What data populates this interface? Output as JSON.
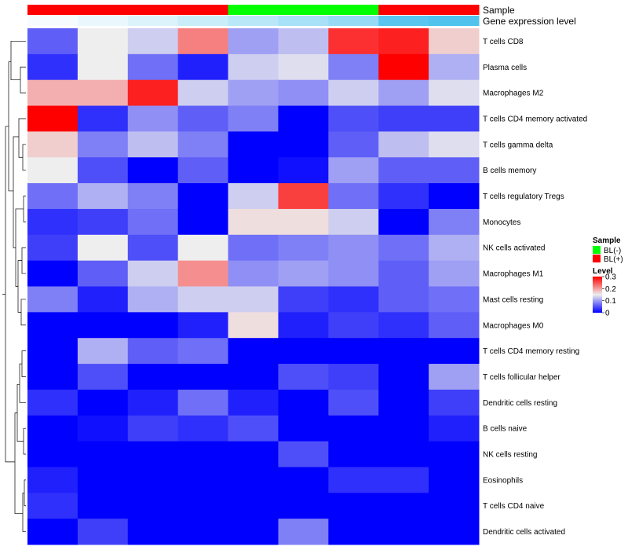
{
  "chart_data": {
    "type": "heatmap",
    "title": "",
    "annotation_labels": [
      "Sample",
      "Gene expression level"
    ],
    "columns": [
      {
        "sample": "BL(+)",
        "expression_level": 0.05
      },
      {
        "sample": "BL(+)",
        "expression_level": 0.12
      },
      {
        "sample": "BL(+)",
        "expression_level": 0.2
      },
      {
        "sample": "BL(+)",
        "expression_level": 0.3
      },
      {
        "sample": "BL(-)",
        "expression_level": 0.4
      },
      {
        "sample": "BL(-)",
        "expression_level": 0.5
      },
      {
        "sample": "BL(-)",
        "expression_level": 0.6
      },
      {
        "sample": "BL(+)",
        "expression_level": 0.95
      },
      {
        "sample": "BL(+)",
        "expression_level": 1.0
      }
    ],
    "rows": [
      "T cells CD8",
      "Plasma cells",
      "Macrophages M2",
      "T cells CD4 memory activated",
      "T cells gamma delta",
      "B cells memory",
      "T cells regulatory  Tregs",
      "Monocytes",
      "NK cells activated",
      "Macrophages M1",
      "Mast cells resting",
      "Macrophages M0",
      "T cells CD4 memory resting",
      "T cells follicular helper",
      "Dendritic cells resting",
      "B cells naive",
      "NK cells resting",
      "Eosinophils",
      "T cells CD4 naive",
      "Dendritic cells activated"
    ],
    "values": [
      [
        0.06,
        0.15,
        0.13,
        0.22,
        0.1,
        0.12,
        0.27,
        0.28,
        0.17
      ],
      [
        0.03,
        0.15,
        0.07,
        0.02,
        0.13,
        0.14,
        0.08,
        0.3,
        0.11
      ],
      [
        0.19,
        0.19,
        0.28,
        0.13,
        0.1,
        0.09,
        0.13,
        0.1,
        0.14
      ],
      [
        0.3,
        0.03,
        0.09,
        0.06,
        0.08,
        0.0,
        0.05,
        0.04,
        0.04
      ],
      [
        0.17,
        0.08,
        0.12,
        0.08,
        0.0,
        0.0,
        0.06,
        0.12,
        0.14
      ],
      [
        0.15,
        0.05,
        0.0,
        0.06,
        0.0,
        0.01,
        0.1,
        0.06,
        0.06
      ],
      [
        0.07,
        0.11,
        0.08,
        0.0,
        0.13,
        0.26,
        0.07,
        0.03,
        0.0
      ],
      [
        0.03,
        0.04,
        0.07,
        0.0,
        0.16,
        0.16,
        0.13,
        0.0,
        0.08
      ],
      [
        0.04,
        0.15,
        0.05,
        0.15,
        0.07,
        0.08,
        0.09,
        0.07,
        0.11
      ],
      [
        0.0,
        0.06,
        0.13,
        0.21,
        0.09,
        0.1,
        0.09,
        0.06,
        0.1
      ],
      [
        0.08,
        0.02,
        0.11,
        0.13,
        0.13,
        0.04,
        0.03,
        0.06,
        0.07
      ],
      [
        0.0,
        0.0,
        0.0,
        0.02,
        0.16,
        0.02,
        0.04,
        0.03,
        0.06
      ],
      [
        0.0,
        0.11,
        0.06,
        0.07,
        0.0,
        0.0,
        0.0,
        0.0,
        0.0
      ],
      [
        0.0,
        0.05,
        0.0,
        0.0,
        0.0,
        0.05,
        0.04,
        0.0,
        0.1
      ],
      [
        0.03,
        0.0,
        0.02,
        0.07,
        0.02,
        0.0,
        0.05,
        0.0,
        0.04
      ],
      [
        0.0,
        0.01,
        0.04,
        0.03,
        0.05,
        0.0,
        0.0,
        0.0,
        0.02
      ],
      [
        0.0,
        0.0,
        0.0,
        0.0,
        0.0,
        0.05,
        0.0,
        0.0,
        0.0
      ],
      [
        0.02,
        0.0,
        0.0,
        0.0,
        0.0,
        0.0,
        0.03,
        0.03,
        0.0
      ],
      [
        0.03,
        0.0,
        0.0,
        0.0,
        0.0,
        0.0,
        0.0,
        0.0,
        0.0
      ],
      [
        0.0,
        0.04,
        0.0,
        0.0,
        0.0,
        0.08,
        0.0,
        0.0,
        0.0
      ]
    ],
    "color_scale": {
      "low": "#0000FF",
      "mid": "#EEEEEE",
      "high": "#FF0000",
      "domain": [
        0,
        0.15,
        0.3
      ]
    },
    "expression_scale": {
      "low": "#FFFFFF",
      "high": "#4FC3EE"
    },
    "legend": {
      "sample_title": "Sample",
      "sample_entries": [
        {
          "label": "BL(-)",
          "color": "#00FF00"
        },
        {
          "label": "BL(+)",
          "color": "#FF0000"
        }
      ],
      "level_title": "Level",
      "level_ticks": [
        {
          "value": 0.3,
          "label": "0.3"
        },
        {
          "value": 0.2,
          "label": "0.2"
        },
        {
          "value": 0.1,
          "label": "0.1"
        },
        {
          "value": 0,
          "label": "0"
        }
      ]
    }
  }
}
